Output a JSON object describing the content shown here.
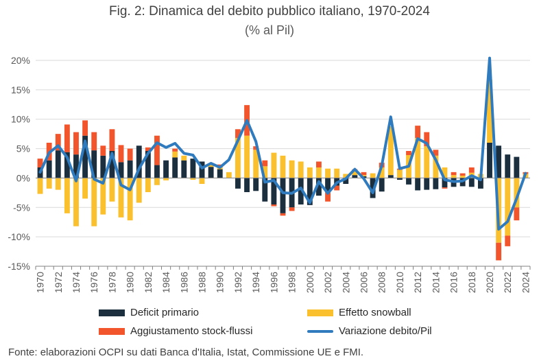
{
  "title": "Fig. 2: Dinamica del debito pubblico italiano, 1970-2024",
  "subtitle": "(% al Pil)",
  "source": "Fonte: elaborazioni OCPI su dati Banca d'Italia, Istat, Commissione UE e FMI.",
  "colors": {
    "deficit": "#1b2f3f",
    "snowball": "#fbc02d",
    "stock": "#f2552c",
    "line": "#2f7bbd",
    "grid": "#d9d9d9",
    "axis": "#808080"
  },
  "legend": [
    {
      "key": "deficit",
      "label": "Deficit primario",
      "kind": "bar"
    },
    {
      "key": "snowball",
      "label": "Effetto snowball",
      "kind": "bar"
    },
    {
      "key": "stock",
      "label": "Aggiustamento stock-flussi",
      "kind": "bar"
    },
    {
      "key": "line",
      "label": "Variazione debito/Pil",
      "kind": "line"
    }
  ],
  "chart_data": {
    "type": "bar",
    "stacked": true,
    "grid": true,
    "ylim": [
      -15,
      20
    ],
    "yticks": [
      -15,
      -10,
      -5,
      0,
      5,
      10,
      15,
      20
    ],
    "ytick_labels": [
      "-15%",
      "-10%",
      "-5%",
      "0%",
      "5%",
      "10%",
      "15%",
      "20%"
    ],
    "x": [
      1970,
      1971,
      1972,
      1973,
      1974,
      1975,
      1976,
      1977,
      1978,
      1979,
      1980,
      1981,
      1982,
      1983,
      1984,
      1985,
      1986,
      1987,
      1988,
      1989,
      1990,
      1991,
      1992,
      1993,
      1994,
      1995,
      1996,
      1997,
      1998,
      1999,
      2000,
      2001,
      2002,
      2003,
      2004,
      2005,
      2006,
      2007,
      2008,
      2009,
      2010,
      2011,
      2012,
      2013,
      2014,
      2015,
      2016,
      2017,
      2018,
      2019,
      2020,
      2021,
      2022,
      2023,
      2024
    ],
    "xtick_labels": [
      "1970",
      "1972",
      "1974",
      "1976",
      "1978",
      "1980",
      "1982",
      "1984",
      "1986",
      "1988",
      "1990",
      "1992",
      "1994",
      "1996",
      "1998",
      "2000",
      "2002",
      "2004",
      "2006",
      "2008",
      "2010",
      "2012",
      "2014",
      "2016",
      "2018",
      "2020",
      "2022",
      "2024"
    ],
    "series": [
      {
        "name": "Deficit primario",
        "type": "bar",
        "values": [
          1.8,
          3.0,
          4.7,
          4.4,
          4.0,
          7.2,
          4.7,
          3.8,
          4.6,
          2.7,
          3.0,
          5.5,
          4.6,
          2.2,
          3.0,
          3.5,
          3.0,
          3.3,
          2.8,
          1.9,
          1.5,
          0.0,
          -1.8,
          -2.4,
          -2.2,
          -4.0,
          -4.5,
          -6.0,
          -5.0,
          -4.5,
          -4.6,
          -3.0,
          -2.4,
          -1.3,
          -1.0,
          0.5,
          0.3,
          -3.4,
          -2.3,
          0.5,
          -0.3,
          -1.1,
          -2.1,
          -2.0,
          -1.9,
          -1.6,
          -1.5,
          -1.4,
          -1.5,
          -1.8,
          6.0,
          5.5,
          4.0,
          3.6,
          0.0
        ]
      },
      {
        "name": "Effetto snowball",
        "type": "bar",
        "values": [
          -2.7,
          -1.8,
          -2.0,
          -6.0,
          -8.2,
          -3.5,
          -8.2,
          -6.2,
          -4.0,
          -6.7,
          -7.2,
          -4.2,
          -2.4,
          -1.2,
          -0.4,
          1.0,
          0.8,
          -0.3,
          -1.0,
          0.6,
          0.3,
          1.0,
          6.8,
          7.2,
          4.8,
          2.0,
          4.3,
          3.8,
          3.0,
          2.8,
          1.8,
          1.8,
          1.6,
          1.6,
          0.7,
          0.8,
          0.2,
          0.8,
          1.8,
          8.3,
          1.4,
          3.9,
          6.8,
          5.4,
          3.8,
          1.8,
          0.5,
          0.4,
          0.9,
          0.7,
          10.7,
          -11.0,
          -9.8,
          -5.0,
          0.7
        ]
      },
      {
        "name": "Aggiustamento stock-flussi",
        "type": "bar",
        "values": [
          1.5,
          3.0,
          2.8,
          4.7,
          3.8,
          2.6,
          3.1,
          1.7,
          3.7,
          2.9,
          2.0,
          0.0,
          0.6,
          5.0,
          0.0,
          0.5,
          0.0,
          0.0,
          0.0,
          0.0,
          0.5,
          0.0,
          1.5,
          5.2,
          0.6,
          1.0,
          -0.3,
          -0.4,
          -0.6,
          0.0,
          0.0,
          1.0,
          -1.6,
          -0.8,
          0.0,
          0.2,
          0.5,
          0.0,
          0.8,
          0.0,
          0.2,
          0.7,
          2.1,
          2.4,
          1.0,
          -0.2,
          0.5,
          0.4,
          0.9,
          0.0,
          0.0,
          -3.0,
          -1.8,
          -2.2,
          0.3
        ]
      },
      {
        "name": "Variazione debito/Pil",
        "type": "line",
        "values": [
          1.0,
          4.3,
          5.5,
          3.5,
          -0.5,
          6.3,
          -0.2,
          -0.9,
          4.2,
          -1.2,
          -2.0,
          1.6,
          4.2,
          6.0,
          5.2,
          5.9,
          4.2,
          3.9,
          1.7,
          2.5,
          1.8,
          3.1,
          6.4,
          9.8,
          6.2,
          -0.7,
          -0.4,
          -2.5,
          -2.6,
          -1.7,
          -4.2,
          -0.6,
          -2.6,
          -0.8,
          -0.1,
          1.5,
          -0.1,
          -2.5,
          2.1,
          10.4,
          1.6,
          2.0,
          6.7,
          5.9,
          3.1,
          -0.3,
          -0.6,
          -0.5,
          0.4,
          -0.3,
          20.4,
          -8.7,
          -7.4,
          -3.5,
          0.8
        ]
      }
    ]
  }
}
